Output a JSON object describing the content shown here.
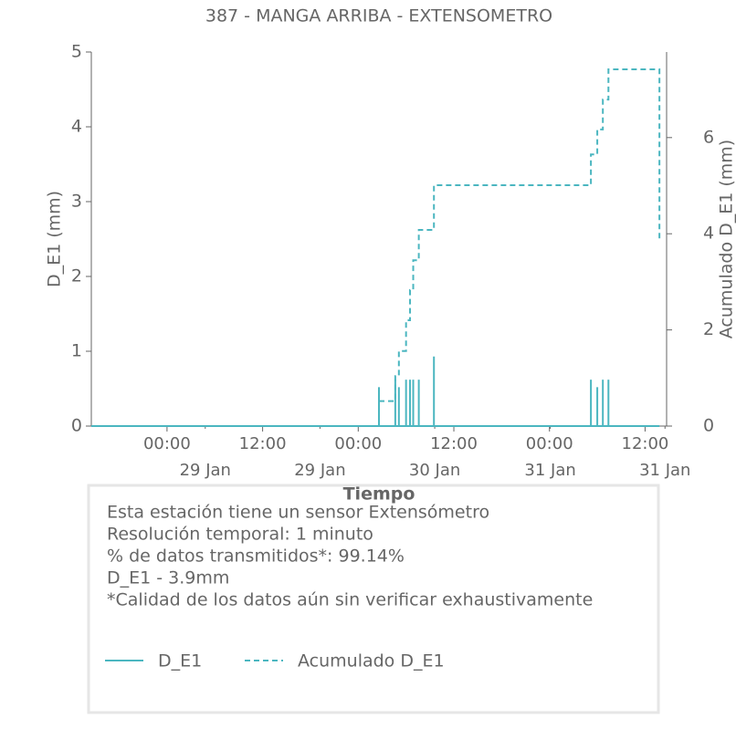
{
  "chart_data": {
    "type": "line",
    "title": "387 - MANGA ARRIBA - EXTENSOMETRO",
    "x_label": "Tiempo",
    "y_label": "D_E1 (mm)",
    "y2_label": "Acumulado D_E1 (mm)",
    "xlim": [
      -9.5,
      62.7
    ],
    "xticks": [
      {
        "value": 0,
        "label": "00:00"
      },
      {
        "value": 12,
        "label": "12:00"
      },
      {
        "value": 24,
        "label": "00:00"
      },
      {
        "value": 36,
        "label": "12:00"
      },
      {
        "value": 48,
        "label": "00:00"
      },
      {
        "value": 60,
        "label": "12:00"
      }
    ],
    "date_ticks": [
      {
        "value": 4.8,
        "label": "29 Jan"
      },
      {
        "value": 19.2,
        "label": "29 Jan"
      },
      {
        "value": 33.6,
        "label": "30 Jan"
      },
      {
        "value": 48.1,
        "label": "31 Jan"
      },
      {
        "value": 62.5,
        "label": "31 Jan"
      }
    ],
    "ylim": [
      0,
      5
    ],
    "yticks": [
      0,
      1,
      2,
      3,
      4,
      5
    ],
    "y2lim": [
      0,
      7.78
    ],
    "y2ticks": [
      0,
      2,
      4,
      6
    ],
    "series": [
      {
        "name": "D_E1",
        "color": "#4bb6c0",
        "style": "solid",
        "x": [
          26.6,
          28.65,
          29.1,
          30.0,
          30.5,
          30.9,
          31.6,
          33.5,
          53.2,
          54.0,
          54.7,
          55.4
        ],
        "values": [
          0.52,
          0.62,
          0.52,
          0.62,
          0.62,
          0.62,
          0.62,
          0.93,
          0.62,
          0.52,
          0.62,
          0.62
        ]
      },
      {
        "name": "Acumulado D_E1",
        "color": "#4bb6c0",
        "style": "dashed",
        "axis": "y2",
        "x": [
          26.6,
          28.65,
          29.1,
          30.0,
          30.5,
          30.9,
          31.6,
          33.5,
          53.2,
          54.0,
          54.7,
          55.4,
          61.8
        ],
        "values": [
          0.52,
          1.04,
          1.56,
          2.2,
          2.83,
          3.45,
          4.08,
          5.01,
          5.65,
          6.17,
          6.79,
          7.42,
          3.87
        ]
      }
    ],
    "info_lines": [
      "Esta estación tiene un sensor Extensómetro",
      "Resolución temporal: 1 minuto",
      "% de datos transmitidos*: 99.14%",
      "D_E1 - 3.9mm",
      "*Calidad de los datos aún sin verificar exhaustivamente"
    ]
  }
}
